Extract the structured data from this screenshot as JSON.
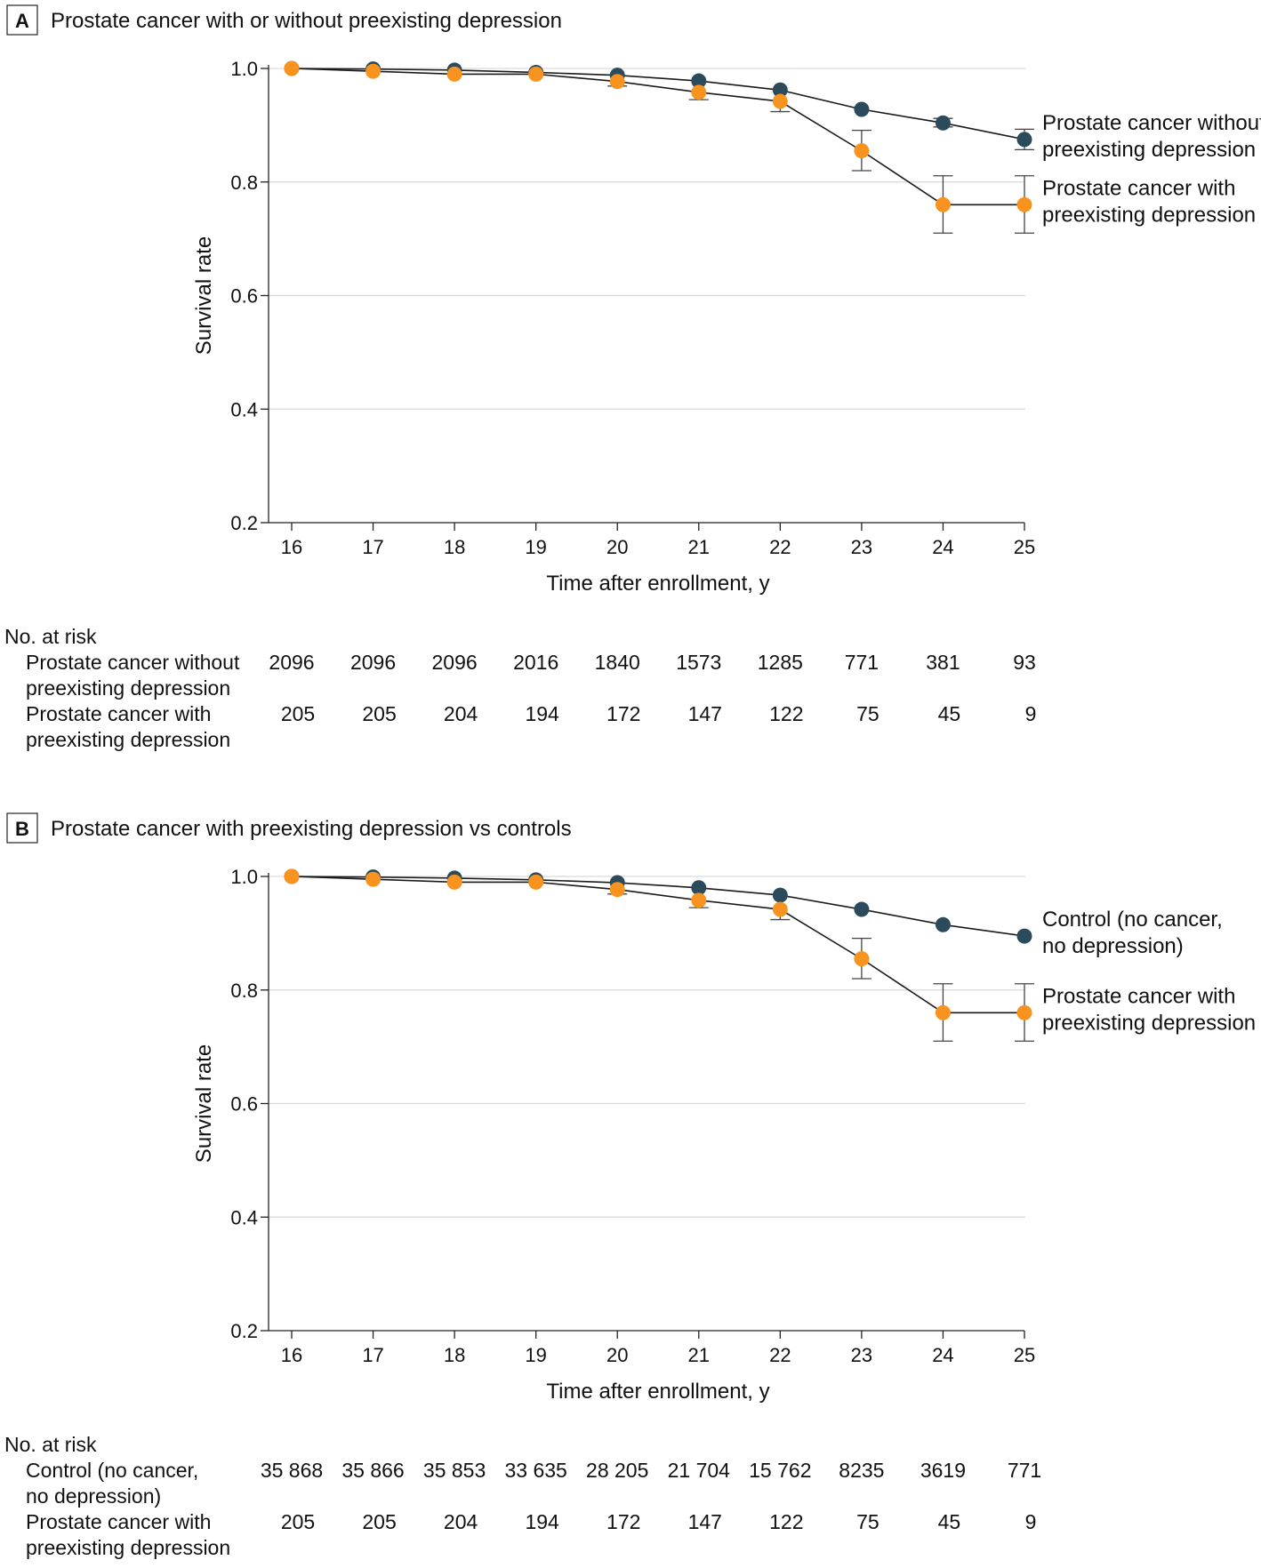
{
  "chart_data": [
    {
      "type": "line",
      "panel_label": "A",
      "title": "Prostate cancer with or without preexisting depression",
      "xlabel": "Time after enrollment, y",
      "ylabel": "Survival rate",
      "ylim": [
        0.2,
        1.0
      ],
      "yticks": [
        "0.2",
        "0.4",
        "0.6",
        "0.8",
        "1.0"
      ],
      "x": [
        16,
        17,
        18,
        19,
        20,
        21,
        22,
        23,
        24,
        25
      ],
      "grid": true,
      "series": [
        {
          "name": "Prostate cancer without preexisting depression",
          "label_lines": [
            "Prostate cancer without",
            "preexisting depression"
          ],
          "color": "#2b4a5c",
          "values": [
            1.0,
            0.999,
            0.997,
            0.993,
            0.988,
            0.978,
            0.962,
            0.928,
            0.904,
            0.875
          ],
          "err_low": [
            null,
            null,
            null,
            null,
            null,
            null,
            null,
            null,
            0.897,
            0.857
          ],
          "err_high": [
            null,
            null,
            null,
            null,
            null,
            null,
            null,
            null,
            0.912,
            0.893
          ]
        },
        {
          "name": "Prostate cancer with preexisting depression",
          "label_lines": [
            "Prostate cancer with",
            "preexisting depression"
          ],
          "color": "#f7931e",
          "values": [
            1.0,
            0.995,
            0.99,
            0.99,
            0.977,
            0.958,
            0.942,
            0.855,
            0.76,
            0.76
          ],
          "err_low": [
            null,
            null,
            null,
            null,
            0.969,
            0.945,
            0.924,
            0.82,
            0.71,
            0.71
          ],
          "err_high": [
            null,
            null,
            null,
            null,
            null,
            null,
            null,
            0.891,
            0.811,
            0.811
          ]
        }
      ],
      "risk_table": {
        "heading": "No. at risk",
        "rows": [
          {
            "label_lines": [
              "Prostate cancer without",
              "preexisting depression"
            ],
            "values": [
              "2096",
              "2096",
              "2096",
              "2016",
              "1840",
              "1573",
              "1285",
              "771",
              "381",
              "93"
            ]
          },
          {
            "label_lines": [
              "Prostate cancer with",
              "preexisting depression"
            ],
            "values": [
              "205",
              "205",
              "204",
              "194",
              "172",
              "147",
              "122",
              "75",
              "45",
              "9"
            ]
          }
        ]
      }
    },
    {
      "type": "line",
      "panel_label": "B",
      "title": "Prostate cancer with preexisting depression vs controls",
      "xlabel": "Time after enrollment, y",
      "ylabel": "Survival rate",
      "ylim": [
        0.2,
        1.0
      ],
      "yticks": [
        "0.2",
        "0.4",
        "0.6",
        "0.8",
        "1.0"
      ],
      "x": [
        16,
        17,
        18,
        19,
        20,
        21,
        22,
        23,
        24,
        25
      ],
      "grid": true,
      "series": [
        {
          "name": "Control (no cancer, no depression)",
          "label_lines": [
            "Control (no cancer,",
            "no depression)"
          ],
          "color": "#2b4a5c",
          "values": [
            1.0,
            0.999,
            0.997,
            0.994,
            0.989,
            0.98,
            0.967,
            0.942,
            0.915,
            0.895
          ],
          "err_low": [
            null,
            null,
            null,
            null,
            null,
            null,
            null,
            null,
            null,
            null
          ],
          "err_high": [
            null,
            null,
            null,
            null,
            null,
            null,
            null,
            null,
            null,
            null
          ]
        },
        {
          "name": "Prostate cancer with preexisting depression",
          "label_lines": [
            "Prostate cancer with",
            "preexisting depression"
          ],
          "color": "#f7931e",
          "values": [
            1.0,
            0.995,
            0.99,
            0.99,
            0.977,
            0.958,
            0.942,
            0.855,
            0.76,
            0.76
          ],
          "err_low": [
            null,
            null,
            null,
            null,
            0.969,
            0.945,
            0.924,
            0.82,
            0.71,
            0.71
          ],
          "err_high": [
            null,
            null,
            null,
            null,
            null,
            null,
            null,
            0.891,
            0.811,
            0.811
          ]
        }
      ],
      "risk_table": {
        "heading": "No. at risk",
        "rows": [
          {
            "label_lines": [
              "Control (no cancer,",
              "no depression)"
            ],
            "values": [
              "35 868",
              "35 866",
              "35 853",
              "33 635",
              "28 205",
              "21 704",
              "15 762",
              "8235",
              "3619",
              "771"
            ]
          },
          {
            "label_lines": [
              "Prostate cancer with",
              "preexisting depression"
            ],
            "values": [
              "205",
              "205",
              "204",
              "194",
              "172",
              "147",
              "122",
              "75",
              "45",
              "9"
            ]
          }
        ]
      }
    }
  ]
}
